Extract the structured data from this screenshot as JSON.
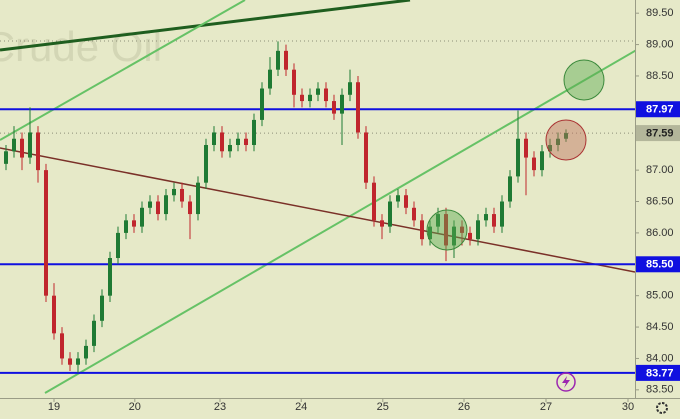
{
  "chart_data": {
    "type": "candlestick",
    "watermark": "nt Crude Oil",
    "x": [
      0,
      1,
      2,
      3,
      4,
      5,
      6,
      7,
      8,
      9,
      10,
      11,
      12,
      13,
      14,
      15,
      16,
      17,
      18,
      19,
      20,
      21,
      22,
      23,
      24,
      25,
      26,
      27,
      28,
      29,
      30,
      31,
      32,
      33,
      34,
      35,
      36,
      37,
      38,
      39,
      40,
      41,
      42,
      43,
      44,
      45,
      46,
      47,
      48,
      49,
      50,
      51,
      52,
      53,
      54,
      55,
      56,
      57,
      58,
      59,
      60,
      61,
      62,
      63,
      64,
      65,
      66,
      67,
      68,
      69,
      70
    ],
    "open": [
      87.1,
      87.3,
      87.5,
      87.2,
      87.6,
      87.0,
      85.0,
      84.4,
      84.0,
      83.9,
      84.0,
      84.2,
      84.6,
      85.0,
      85.6,
      86.0,
      86.2,
      86.1,
      86.4,
      86.5,
      86.3,
      86.6,
      86.7,
      86.5,
      86.3,
      86.8,
      87.4,
      87.6,
      87.3,
      87.4,
      87.5,
      87.4,
      87.8,
      88.3,
      88.6,
      88.9,
      88.6,
      88.2,
      88.1,
      88.2,
      88.3,
      88.1,
      87.9,
      88.2,
      88.4,
      87.6,
      86.8,
      86.2,
      86.1,
      86.5,
      86.6,
      86.4,
      86.2,
      85.9,
      86.1,
      86.3,
      85.8,
      86.1,
      86.0,
      85.9,
      86.2,
      86.3,
      86.1,
      86.5,
      86.9,
      87.5,
      87.2,
      87.0,
      87.3,
      87.4,
      87.5
    ],
    "high": [
      87.4,
      87.7,
      87.6,
      88.0,
      87.7,
      87.1,
      85.2,
      84.5,
      84.1,
      84.1,
      84.3,
      84.7,
      85.1,
      85.7,
      86.1,
      86.3,
      86.3,
      86.5,
      86.6,
      86.6,
      86.7,
      86.8,
      86.8,
      86.6,
      86.9,
      87.5,
      87.7,
      87.7,
      87.5,
      87.6,
      87.6,
      87.9,
      88.4,
      88.8,
      89.05,
      89.0,
      88.7,
      88.3,
      88.3,
      88.4,
      88.4,
      88.2,
      88.3,
      88.6,
      88.5,
      87.7,
      86.9,
      86.3,
      86.6,
      86.7,
      86.7,
      86.5,
      86.3,
      86.2,
      86.4,
      86.4,
      86.2,
      86.2,
      86.1,
      86.3,
      86.4,
      86.4,
      86.6,
      87.0,
      87.95,
      87.6,
      87.3,
      87.4,
      87.5,
      87.6,
      87.65
    ],
    "low": [
      87.0,
      87.2,
      87.0,
      87.1,
      86.8,
      84.9,
      84.3,
      83.9,
      83.8,
      83.77,
      83.9,
      84.1,
      84.5,
      84.9,
      85.5,
      85.9,
      86.0,
      86.0,
      86.3,
      86.2,
      86.2,
      86.5,
      86.4,
      85.9,
      86.2,
      86.7,
      87.3,
      87.2,
      87.2,
      87.3,
      87.3,
      87.3,
      87.7,
      88.2,
      88.5,
      88.5,
      88.0,
      88.0,
      88.0,
      88.1,
      88.0,
      87.8,
      87.4,
      88.1,
      87.5,
      86.7,
      86.1,
      85.9,
      86.0,
      86.4,
      86.3,
      86.1,
      85.8,
      85.8,
      86.0,
      85.55,
      85.6,
      85.8,
      85.8,
      85.8,
      86.1,
      86.0,
      86.0,
      86.4,
      86.8,
      86.6,
      86.9,
      86.9,
      87.2,
      87.3,
      87.45
    ],
    "close": [
      87.3,
      87.5,
      87.2,
      87.6,
      87.0,
      85.0,
      84.4,
      84.0,
      83.9,
      84.0,
      84.2,
      84.6,
      85.0,
      85.6,
      86.0,
      86.2,
      86.1,
      86.4,
      86.5,
      86.3,
      86.6,
      86.7,
      86.5,
      86.3,
      86.8,
      87.4,
      87.6,
      87.3,
      87.4,
      87.5,
      87.4,
      87.8,
      88.3,
      88.6,
      88.9,
      88.6,
      88.2,
      88.1,
      88.2,
      88.3,
      88.1,
      87.9,
      88.2,
      88.4,
      87.6,
      86.8,
      86.2,
      86.1,
      86.5,
      86.6,
      86.4,
      86.2,
      85.9,
      86.1,
      86.3,
      85.8,
      86.1,
      86.0,
      85.9,
      86.2,
      86.3,
      86.1,
      86.5,
      86.9,
      87.5,
      87.2,
      87.0,
      87.3,
      87.4,
      87.5,
      87.59
    ],
    "up_color": "#1f7a34",
    "down_color": "#c0262d",
    "xlim": [
      -0.75,
      78.625
    ],
    "xticks": [
      {
        "value": 6,
        "label": "19"
      },
      {
        "value": 16.1,
        "label": "20"
      },
      {
        "value": 26.75,
        "label": "23"
      },
      {
        "value": 36.9,
        "label": "24"
      },
      {
        "value": 47.1,
        "label": "25"
      },
      {
        "value": 57.25,
        "label": "26"
      },
      {
        "value": 67.5,
        "label": "27"
      },
      {
        "value": 77.75,
        "label": "30"
      }
    ],
    "ylim": [
      83.37,
      89.71
    ],
    "yticks": [
      {
        "value": 83.5,
        "label": "83.50"
      },
      {
        "value": 84,
        "label": "84.00"
      },
      {
        "value": 84.5,
        "label": "84.50"
      },
      {
        "value": 85,
        "label": "85.00"
      },
      {
        "value": 86,
        "label": "86.00"
      },
      {
        "value": 86.5,
        "label": "86.50"
      },
      {
        "value": 87,
        "label": "87.00"
      },
      {
        "value": 88.5,
        "label": "88.50"
      },
      {
        "value": 89,
        "label": "89.00"
      },
      {
        "value": 89.5,
        "label": "89.50"
      }
    ],
    "levels": [
      {
        "value": 87.97,
        "label": "87.97",
        "color": "#1010e0"
      },
      {
        "value": 85.5,
        "label": "85.50",
        "color": "#1010e0"
      },
      {
        "value": 83.77,
        "label": "83.77",
        "color": "#1010e0"
      }
    ],
    "last_price": {
      "value": 87.59,
      "label": "87.59",
      "color": "#b3b69a"
    }
  }
}
